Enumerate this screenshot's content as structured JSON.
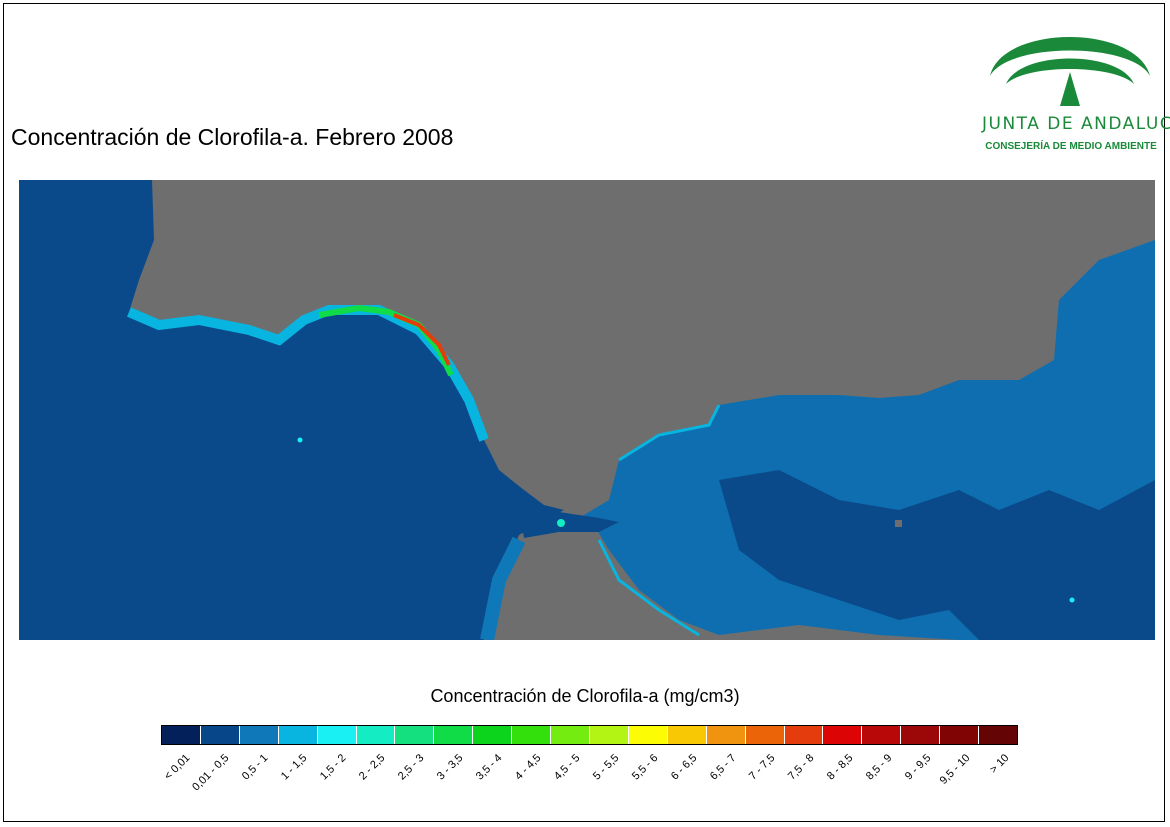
{
  "title": "Concentración de Clorofila-a. Febrero 2008",
  "logo": {
    "name": "JUNTA DE ANDALUCIA",
    "subtitle": "CONSEJERÍA DE MEDIO AMBIENTE"
  },
  "map": {
    "land_color": "#6e6e6e",
    "sea_color": "#0a4a8a"
  },
  "legend": {
    "title": "Concentración de Clorofila-a (mg/cm3)",
    "classes": [
      {
        "label": "< 0,01",
        "color": "#04205a"
      },
      {
        "label": "0,01 - 0,5",
        "color": "#08468a"
      },
      {
        "label": "0,5 - 1",
        "color": "#0f78b8"
      },
      {
        "label": "1 - 1,5",
        "color": "#08b4e0"
      },
      {
        "label": "1,5 - 2",
        "color": "#18f0f4"
      },
      {
        "label": "2 - 2,5",
        "color": "#14ecc4"
      },
      {
        "label": "2,5 - 3",
        "color": "#14e080"
      },
      {
        "label": "3 - 3,5",
        "color": "#10dc48"
      },
      {
        "label": "3,5 - 4",
        "color": "#0cd41c"
      },
      {
        "label": "4 - 4,5",
        "color": "#34e00c"
      },
      {
        "label": "4,5 - 5",
        "color": "#74ec10"
      },
      {
        "label": "5 - 5,5",
        "color": "#b4f414"
      },
      {
        "label": "5,5 - 6",
        "color": "#fcfc04"
      },
      {
        "label": "6 - 6,5",
        "color": "#f8c804"
      },
      {
        "label": "6,5 - 7",
        "color": "#f09410"
      },
      {
        "label": "7 - 7,5",
        "color": "#ec6408"
      },
      {
        "label": "7,5 - 8",
        "color": "#e43c0c"
      },
      {
        "label": "8 - 8,5",
        "color": "#dc0404"
      },
      {
        "label": "8,5 - 9",
        "color": "#b80808"
      },
      {
        "label": "9 - 9,5",
        "color": "#9c0808"
      },
      {
        "label": "9,5 - 10",
        "color": "#800404"
      },
      {
        "label": "> 10",
        "color": "#640404"
      }
    ]
  }
}
